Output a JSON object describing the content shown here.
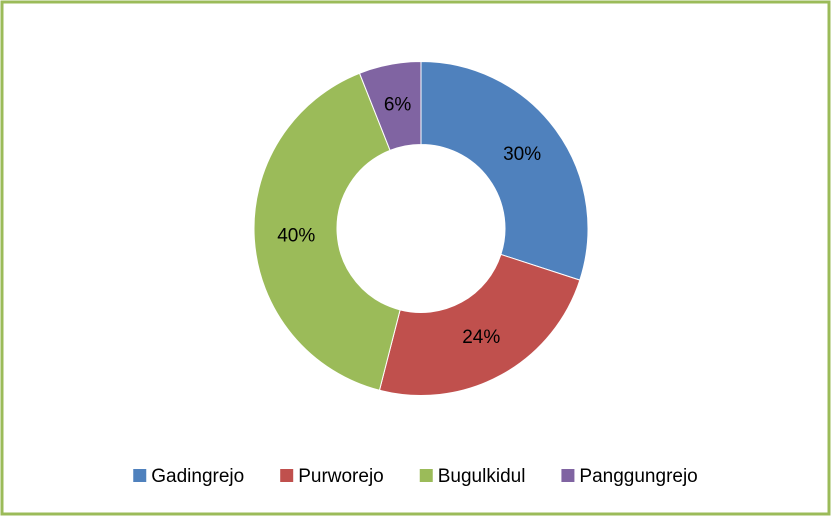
{
  "chart_data": {
    "type": "donut",
    "categories": [
      "Gadingrejo",
      "Purworejo",
      "Bugulkidul",
      "Panggungrejo"
    ],
    "values": [
      30,
      24,
      40,
      6
    ],
    "value_labels": [
      "30%",
      "24%",
      "40%",
      "6%"
    ],
    "colors": [
      "#4f81bd",
      "#c0504d",
      "#9bbb59",
      "#8064a2"
    ],
    "legend": "bottom"
  }
}
